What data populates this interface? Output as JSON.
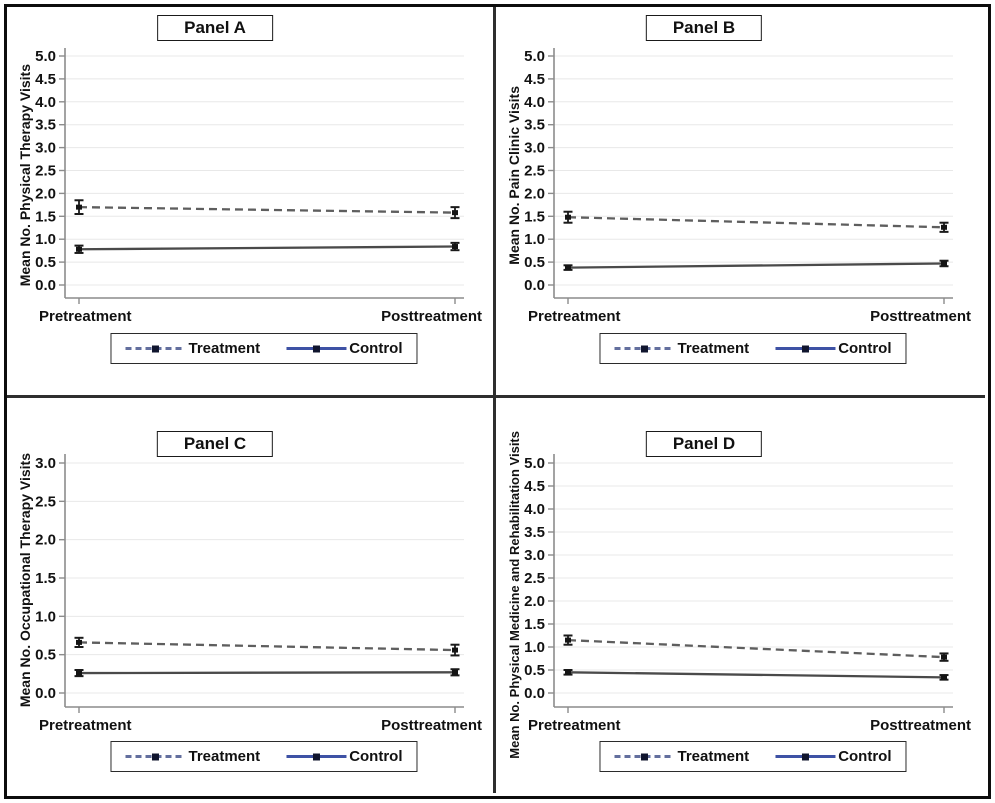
{
  "figure_title": "",
  "colors": {
    "treatment_plot_line": "#5e5e5e",
    "control_plot_line": "#4a4a4a",
    "error_bar": "#1a1a1a",
    "marker": "#141414",
    "grid": "#e8e8e8",
    "axis": "#8c8c8c",
    "text": "#111111",
    "legend_treatment_line": "#636f9e",
    "legend_control_line": "#3e52a5",
    "legend_marker": "#10152e",
    "outer_border": "#0d0d0d"
  },
  "chart_data": [
    {
      "panel": "A",
      "type": "line",
      "title": "Panel A",
      "ylabel": "Mean No. Physical Therapy Visits",
      "xlabel": "",
      "categories": [
        "Pretreatment",
        "Posttreatment"
      ],
      "ylim": [
        0.0,
        5.0
      ],
      "ytick_step": 0.5,
      "grid": true,
      "legend_position": "bottom",
      "series": [
        {
          "name": "Treatment",
          "line_style": "dashed",
          "values": [
            1.7,
            1.58
          ],
          "errors": [
            0.15,
            0.12
          ]
        },
        {
          "name": "Control",
          "line_style": "solid",
          "values": [
            0.78,
            0.84
          ],
          "errors": [
            0.08,
            0.08
          ]
        }
      ]
    },
    {
      "panel": "B",
      "type": "line",
      "title": "Panel B",
      "ylabel": "Mean No. Pain Clinic Visits",
      "xlabel": "",
      "categories": [
        "Pretreatment",
        "Posttreatment"
      ],
      "ylim": [
        0.0,
        5.0
      ],
      "ytick_step": 0.5,
      "grid": true,
      "legend_position": "bottom",
      "series": [
        {
          "name": "Treatment",
          "line_style": "dashed",
          "values": [
            1.48,
            1.26
          ],
          "errors": [
            0.12,
            0.1
          ]
        },
        {
          "name": "Control",
          "line_style": "solid",
          "values": [
            0.38,
            0.47
          ],
          "errors": [
            0.05,
            0.06
          ]
        }
      ]
    },
    {
      "panel": "C",
      "type": "line",
      "title": "Panel C",
      "ylabel": "Mean No. Occupational Therapy Visits",
      "xlabel": "",
      "categories": [
        "Pretreatment",
        "Posttreatment"
      ],
      "ylim": [
        0.0,
        3.0
      ],
      "ytick_step": 0.5,
      "grid": true,
      "legend_position": "bottom",
      "series": [
        {
          "name": "Treatment",
          "line_style": "dashed",
          "values": [
            0.66,
            0.56
          ],
          "errors": [
            0.06,
            0.07
          ]
        },
        {
          "name": "Control",
          "line_style": "solid",
          "values": [
            0.26,
            0.27
          ],
          "errors": [
            0.04,
            0.04
          ]
        }
      ]
    },
    {
      "panel": "D",
      "type": "line",
      "title": "Panel D",
      "ylabel": "Mean No. Physical Medicine and Rehabilitation Visits",
      "xlabel": "",
      "categories": [
        "Pretreatment",
        "Posttreatment"
      ],
      "ylim": [
        0.0,
        5.0
      ],
      "ytick_step": 0.5,
      "grid": true,
      "legend_position": "bottom",
      "series": [
        {
          "name": "Treatment",
          "line_style": "dashed",
          "values": [
            1.15,
            0.78
          ],
          "errors": [
            0.1,
            0.08
          ]
        },
        {
          "name": "Control",
          "line_style": "solid",
          "values": [
            0.45,
            0.34
          ],
          "errors": [
            0.05,
            0.05
          ]
        }
      ]
    }
  ]
}
